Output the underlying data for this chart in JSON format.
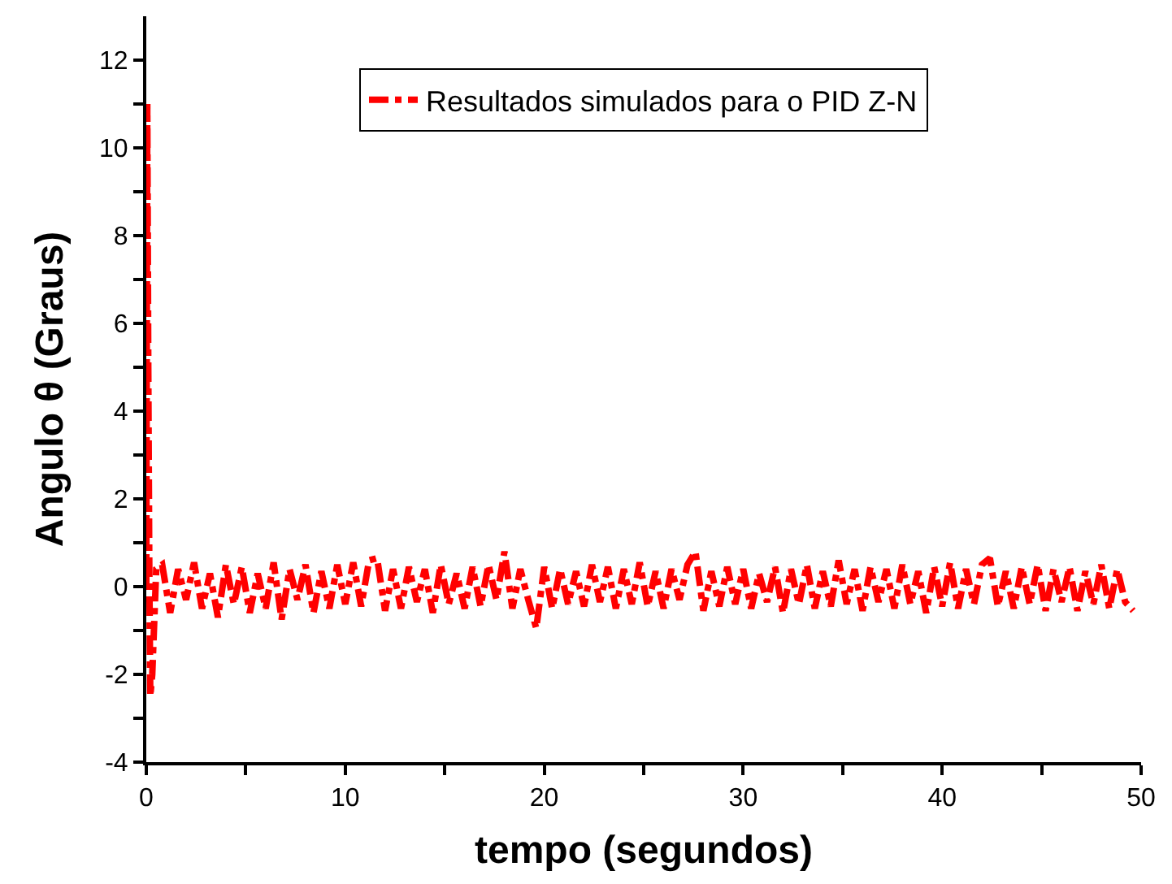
{
  "chart_data": {
    "type": "line",
    "xlabel": "tempo (segundos)",
    "ylabel": "Angulo θ (Graus)",
    "xlim": [
      0,
      50
    ],
    "ylim": [
      -4,
      13
    ],
    "xticks": [
      0,
      {
        "value": 5,
        "label": null
      },
      10,
      {
        "value": 15,
        "label": null
      },
      20,
      {
        "value": 25,
        "label": null
      },
      30,
      {
        "value": 35,
        "label": null
      },
      40,
      {
        "value": 45,
        "label": null
      },
      50
    ],
    "yticks": [
      -4,
      {
        "value": -3,
        "label": null
      },
      -2,
      {
        "value": -1,
        "label": null
      },
      0,
      {
        "value": 1,
        "label": null
      },
      2,
      {
        "value": 3,
        "label": null
      },
      4,
      {
        "value": 5,
        "label": null
      },
      6,
      {
        "value": 7,
        "label": null
      },
      8,
      {
        "value": 9,
        "label": null
      },
      10,
      {
        "value": 11,
        "label": null
      },
      12
    ],
    "legend": "top",
    "line_style": "dashdot",
    "marker": "none",
    "series": [
      {
        "name": "Resultados simulados para o PID Z-N",
        "color": "#ff0000",
        "x": [
          0,
          0.05,
          0.1,
          0.15,
          0.2,
          0.3,
          0.5,
          0.8,
          1.2,
          1.6,
          2.0,
          2.4,
          2.8,
          3.2,
          3.6,
          4.0,
          4.4,
          4.8,
          5.2,
          5.6,
          6.0,
          6.4,
          6.8,
          7.2,
          7.6,
          8.0,
          8.4,
          8.8,
          9.2,
          9.6,
          10.0,
          10.4,
          10.8,
          11.2,
          11.6,
          12.0,
          12.4,
          12.8,
          13.2,
          13.6,
          14.0,
          14.4,
          14.8,
          15.2,
          15.6,
          16.0,
          16.4,
          16.8,
          17.2,
          17.6,
          18.0,
          18.4,
          18.8,
          19.2,
          19.6,
          20.0,
          20.4,
          20.8,
          21.2,
          21.6,
          22.0,
          22.4,
          22.8,
          23.2,
          23.6,
          24.0,
          24.4,
          24.8,
          25.2,
          25.6,
          26.0,
          26.4,
          26.8,
          27.2,
          27.6,
          28.0,
          28.4,
          28.8,
          29.2,
          29.6,
          30.0,
          30.4,
          30.8,
          31.2,
          31.6,
          32.0,
          32.4,
          32.8,
          33.2,
          33.6,
          34.0,
          34.4,
          34.8,
          35.2,
          35.6,
          36.0,
          36.4,
          36.8,
          37.2,
          37.6,
          38.0,
          38.4,
          38.8,
          39.2,
          39.6,
          40.0,
          40.4,
          40.8,
          41.2,
          41.6,
          42.0,
          42.4,
          42.8,
          43.2,
          43.6,
          44.0,
          44.4,
          44.8,
          45.2,
          45.6,
          46.0,
          46.4,
          46.8,
          47.2,
          47.6,
          48.0,
          48.4,
          48.8,
          49.2,
          49.6
        ],
        "values": [
          0,
          11,
          5,
          0.5,
          -2.5,
          -2,
          0.4,
          0.5,
          -0.6,
          0.4,
          -0.3,
          0.55,
          -0.5,
          0.3,
          -0.7,
          0.5,
          -0.4,
          0.45,
          -0.6,
          0.3,
          -0.5,
          0.55,
          -0.75,
          0.4,
          -0.3,
          0.5,
          -0.6,
          0.35,
          -0.5,
          0.5,
          -0.4,
          0.55,
          -0.45,
          0.6,
          0.65,
          -0.55,
          0.4,
          -0.5,
          0.45,
          -0.35,
          0.4,
          -0.6,
          0.5,
          -0.4,
          0.3,
          -0.5,
          0.45,
          -0.45,
          0.5,
          -0.3,
          0.8,
          -0.5,
          0.4,
          -0.3,
          -0.95,
          0.45,
          -0.5,
          0.4,
          -0.4,
          0.35,
          -0.45,
          0.5,
          -0.35,
          0.45,
          -0.5,
          0.4,
          -0.4,
          0.55,
          -0.45,
          0.35,
          -0.5,
          0.4,
          -0.3,
          0.5,
          0.8,
          -0.55,
          0.35,
          -0.45,
          0.45,
          -0.4,
          0.4,
          -0.5,
          0.3,
          -0.35,
          0.45,
          -0.6,
          0.4,
          -0.4,
          0.5,
          -0.5,
          0.35,
          -0.45,
          0.6,
          -0.4,
          0.4,
          -0.55,
          0.45,
          -0.35,
          0.4,
          -0.5,
          0.5,
          -0.4,
          0.35,
          -0.6,
          0.45,
          -0.45,
          0.55,
          -0.5,
          0.4,
          -0.4,
          0.5,
          0.65,
          -0.45,
          0.35,
          -0.5,
          0.45,
          -0.4,
          0.5,
          -0.55,
          0.4,
          -0.35,
          0.45,
          -0.55,
          0.35,
          -0.4,
          0.5,
          -0.5,
          0.4,
          -0.35,
          -0.55
        ]
      }
    ]
  }
}
